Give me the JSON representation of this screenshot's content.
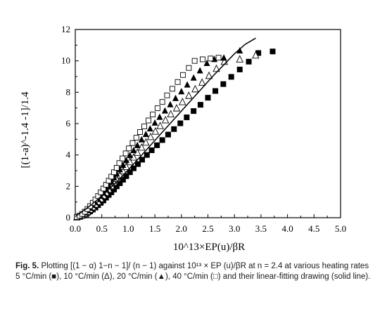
{
  "chart_data": {
    "type": "scatter",
    "xlabel": "10^13×EP(u)/βR",
    "ylabel": "[(1-a)^-1.4 -1]/1.4",
    "xlim": [
      0.0,
      5.0
    ],
    "ylim": [
      0,
      12
    ],
    "xticks": [
      "0.0",
      "0.5",
      "1.0",
      "1.5",
      "2.0",
      "2.5",
      "3.0",
      "3.5",
      "4.0",
      "4.5",
      "5.0"
    ],
    "yticks": [
      "0",
      "2",
      "4",
      "6",
      "8",
      "10",
      "12"
    ],
    "grid": false,
    "legend": "none",
    "series": [
      {
        "marker": "filled-square",
        "points": [
          [
            0.03,
            0.02
          ],
          [
            0.08,
            0.06
          ],
          [
            0.13,
            0.12
          ],
          [
            0.18,
            0.2
          ],
          [
            0.23,
            0.3
          ],
          [
            0.28,
            0.4
          ],
          [
            0.33,
            0.52
          ],
          [
            0.38,
            0.65
          ],
          [
            0.43,
            0.8
          ],
          [
            0.48,
            0.95
          ],
          [
            0.53,
            1.1
          ],
          [
            0.58,
            1.28
          ],
          [
            0.63,
            1.45
          ],
          [
            0.68,
            1.62
          ],
          [
            0.73,
            1.8
          ],
          [
            0.78,
            2.0
          ],
          [
            0.84,
            2.2
          ],
          [
            0.9,
            2.42
          ],
          [
            0.96,
            2.65
          ],
          [
            1.03,
            2.9
          ],
          [
            1.1,
            3.15
          ],
          [
            1.18,
            3.42
          ],
          [
            1.26,
            3.7
          ],
          [
            1.35,
            4.0
          ],
          [
            1.44,
            4.3
          ],
          [
            1.54,
            4.62
          ],
          [
            1.64,
            4.95
          ],
          [
            1.75,
            5.3
          ],
          [
            1.86,
            5.65
          ],
          [
            1.98,
            6.02
          ],
          [
            2.1,
            6.4
          ],
          [
            2.23,
            6.8
          ],
          [
            2.36,
            7.2
          ],
          [
            2.5,
            7.65
          ],
          [
            2.64,
            8.08
          ],
          [
            2.79,
            8.52
          ],
          [
            2.94,
            8.98
          ],
          [
            3.1,
            9.45
          ],
          [
            3.27,
            9.95
          ],
          [
            3.45,
            10.5
          ],
          [
            3.72,
            10.6
          ]
        ]
      },
      {
        "marker": "open-triangle",
        "points": [
          [
            0.03,
            0.03
          ],
          [
            0.08,
            0.08
          ],
          [
            0.13,
            0.16
          ],
          [
            0.18,
            0.26
          ],
          [
            0.23,
            0.38
          ],
          [
            0.28,
            0.52
          ],
          [
            0.33,
            0.68
          ],
          [
            0.38,
            0.85
          ],
          [
            0.43,
            1.02
          ],
          [
            0.48,
            1.2
          ],
          [
            0.53,
            1.4
          ],
          [
            0.58,
            1.6
          ],
          [
            0.63,
            1.8
          ],
          [
            0.68,
            2.02
          ],
          [
            0.73,
            2.25
          ],
          [
            0.78,
            2.48
          ],
          [
            0.84,
            2.72
          ],
          [
            0.9,
            2.98
          ],
          [
            0.96,
            3.25
          ],
          [
            1.03,
            3.55
          ],
          [
            1.1,
            3.85
          ],
          [
            1.17,
            4.15
          ],
          [
            1.25,
            4.48
          ],
          [
            1.33,
            4.8
          ],
          [
            1.42,
            5.15
          ],
          [
            1.51,
            5.5
          ],
          [
            1.6,
            5.85
          ],
          [
            1.7,
            6.22
          ],
          [
            1.8,
            6.6
          ],
          [
            1.91,
            6.98
          ],
          [
            2.02,
            7.38
          ],
          [
            2.14,
            7.78
          ],
          [
            2.26,
            8.2
          ],
          [
            2.39,
            8.62
          ],
          [
            2.52,
            9.05
          ],
          [
            2.66,
            9.5
          ],
          [
            2.81,
            9.95
          ],
          [
            3.1,
            10.1
          ],
          [
            3.4,
            10.35
          ]
        ]
      },
      {
        "marker": "filled-triangle",
        "points": [
          [
            0.03,
            0.04
          ],
          [
            0.08,
            0.1
          ],
          [
            0.13,
            0.2
          ],
          [
            0.18,
            0.32
          ],
          [
            0.23,
            0.46
          ],
          [
            0.28,
            0.62
          ],
          [
            0.33,
            0.8
          ],
          [
            0.38,
            0.98
          ],
          [
            0.43,
            1.18
          ],
          [
            0.48,
            1.38
          ],
          [
            0.53,
            1.6
          ],
          [
            0.58,
            1.82
          ],
          [
            0.63,
            2.05
          ],
          [
            0.68,
            2.3
          ],
          [
            0.73,
            2.55
          ],
          [
            0.78,
            2.8
          ],
          [
            0.84,
            3.08
          ],
          [
            0.9,
            3.36
          ],
          [
            0.96,
            3.66
          ],
          [
            1.03,
            3.98
          ],
          [
            1.1,
            4.3
          ],
          [
            1.17,
            4.62
          ],
          [
            1.25,
            4.98
          ],
          [
            1.33,
            5.32
          ],
          [
            1.41,
            5.68
          ],
          [
            1.5,
            6.05
          ],
          [
            1.59,
            6.42
          ],
          [
            1.69,
            6.82
          ],
          [
            1.79,
            7.22
          ],
          [
            1.89,
            7.62
          ],
          [
            2.0,
            8.05
          ],
          [
            2.11,
            8.48
          ],
          [
            2.23,
            8.92
          ],
          [
            2.35,
            9.38
          ],
          [
            2.48,
            9.85
          ],
          [
            2.62,
            10.1
          ],
          [
            2.8,
            10.2
          ],
          [
            3.1,
            10.65
          ]
        ]
      },
      {
        "marker": "open-square",
        "points": [
          [
            0.03,
            0.05
          ],
          [
            0.08,
            0.13
          ],
          [
            0.13,
            0.24
          ],
          [
            0.18,
            0.38
          ],
          [
            0.23,
            0.55
          ],
          [
            0.28,
            0.74
          ],
          [
            0.33,
            0.95
          ],
          [
            0.38,
            1.16
          ],
          [
            0.43,
            1.38
          ],
          [
            0.48,
            1.62
          ],
          [
            0.53,
            1.86
          ],
          [
            0.58,
            2.1
          ],
          [
            0.63,
            2.36
          ],
          [
            0.68,
            2.62
          ],
          [
            0.73,
            2.9
          ],
          [
            0.78,
            3.18
          ],
          [
            0.83,
            3.48
          ],
          [
            0.89,
            3.78
          ],
          [
            0.95,
            4.1
          ],
          [
            1.01,
            4.42
          ],
          [
            1.08,
            4.76
          ],
          [
            1.15,
            5.1
          ],
          [
            1.22,
            5.46
          ],
          [
            1.3,
            5.82
          ],
          [
            1.38,
            6.2
          ],
          [
            1.46,
            6.58
          ],
          [
            1.55,
            6.98
          ],
          [
            1.64,
            7.38
          ],
          [
            1.73,
            7.8
          ],
          [
            1.83,
            8.22
          ],
          [
            1.93,
            8.65
          ],
          [
            2.03,
            9.1
          ],
          [
            2.14,
            9.55
          ],
          [
            2.25,
            10.0
          ],
          [
            2.4,
            10.1
          ],
          [
            2.55,
            10.15
          ],
          [
            2.7,
            10.2
          ]
        ]
      }
    ],
    "fit_line": [
      [
        0.0,
        0.08
      ],
      [
        0.2,
        0.55
      ],
      [
        0.4,
        1.1
      ],
      [
        0.6,
        1.7
      ],
      [
        0.8,
        2.35
      ],
      [
        1.0,
        3.05
      ],
      [
        1.2,
        3.8
      ],
      [
        1.4,
        4.55
      ],
      [
        1.6,
        5.3
      ],
      [
        1.8,
        6.05
      ],
      [
        2.0,
        6.8
      ],
      [
        2.2,
        7.55
      ],
      [
        2.4,
        8.3
      ],
      [
        2.6,
        9.05
      ],
      [
        2.8,
        9.75
      ],
      [
        3.0,
        10.45
      ],
      [
        3.2,
        11.05
      ],
      [
        3.4,
        11.45
      ]
    ]
  },
  "caption": {
    "label": "Fig. 5.",
    "text": "Plotting [(1 − α) 1−n − 1]/ (n − 1) against 10¹³ × EP (u)/βR at n = 2.4 at various heating rates 5 °C/min (■), 10 °C/min (Δ), 20 °C/min (▲), 40 °C/min (□) and their linear-fitting drawing (solid line)."
  }
}
